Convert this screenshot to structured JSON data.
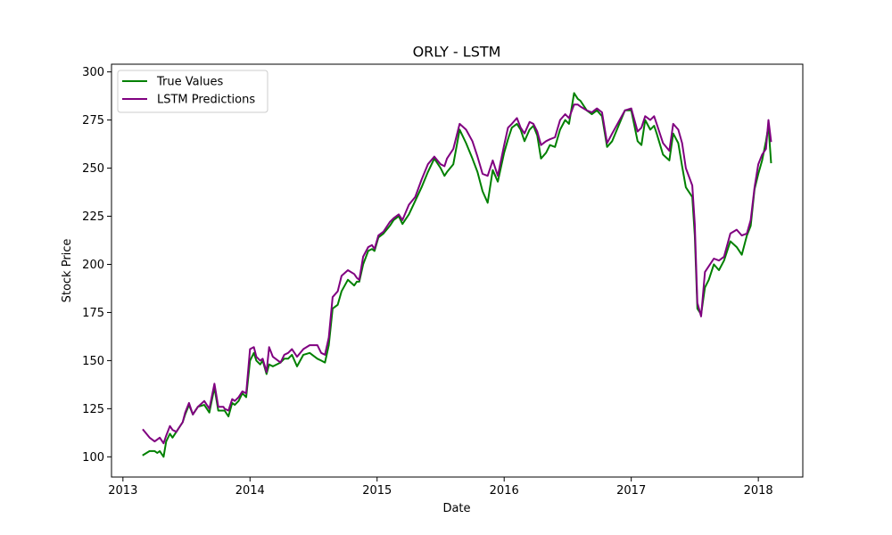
{
  "chart_data": {
    "type": "line",
    "title": "ORLY - LSTM",
    "xlabel": "Date",
    "ylabel": "Stock Price",
    "xlim": [
      2012.91,
      2018.35
    ],
    "ylim": [
      89.5,
      304
    ],
    "x_ticks": [
      2013,
      2014,
      2015,
      2016,
      2017,
      2018
    ],
    "x_tick_labels": [
      "2013",
      "2014",
      "2015",
      "2016",
      "2017",
      "2018"
    ],
    "y_ticks": [
      100,
      125,
      150,
      175,
      200,
      225,
      250,
      275,
      300
    ],
    "y_tick_labels": [
      "100",
      "125",
      "150",
      "175",
      "200",
      "225",
      "250",
      "275",
      "300"
    ],
    "grid": false,
    "legend": "top-left",
    "x_units": "year (decimal)",
    "series": [
      {
        "name": "True Values",
        "color": "#008000",
        "x": [
          2013.16,
          2013.21,
          2013.25,
          2013.27,
          2013.29,
          2013.32,
          2013.34,
          2013.37,
          2013.39,
          2013.42,
          2013.44,
          2013.47,
          2013.49,
          2013.52,
          2013.55,
          2013.59,
          2013.64,
          2013.68,
          2013.72,
          2013.75,
          2013.79,
          2013.8,
          2013.83,
          2013.86,
          2013.88,
          2013.91,
          2013.94,
          2013.97,
          2014.0,
          2014.03,
          2014.05,
          2014.08,
          2014.1,
          2014.13,
          2014.15,
          2014.18,
          2014.24,
          2014.27,
          2014.3,
          2014.33,
          2014.37,
          2014.42,
          2014.47,
          2014.53,
          2014.56,
          2014.59,
          2014.62,
          2014.65,
          2014.69,
          2014.72,
          2014.77,
          2014.82,
          2014.84,
          2014.86,
          2014.89,
          2014.93,
          2014.96,
          2014.98,
          2015.01,
          2015.05,
          2015.1,
          2015.13,
          2015.17,
          2015.2,
          2015.25,
          2015.3,
          2015.35,
          2015.4,
          2015.45,
          2015.5,
          2015.53,
          2015.55,
          2015.6,
          2015.65,
          2015.7,
          2015.75,
          2015.79,
          2015.83,
          2015.87,
          2015.91,
          2015.95,
          2016.0,
          2016.03,
          2016.06,
          2016.1,
          2016.13,
          2016.16,
          2016.2,
          2016.23,
          2016.26,
          2016.29,
          2016.33,
          2016.36,
          2016.4,
          2016.44,
          2016.48,
          2016.51,
          2016.55,
          2016.58,
          2016.6,
          2016.65,
          2016.69,
          2016.73,
          2016.77,
          2016.81,
          2016.85,
          2016.9,
          2016.95,
          2017.0,
          2017.05,
          2017.08,
          2017.11,
          2017.15,
          2017.18,
          2017.2,
          2017.25,
          2017.3,
          2017.33,
          2017.37,
          2017.4,
          2017.43,
          2017.48,
          2017.5,
          2017.52,
          2017.55,
          2017.58,
          2017.61,
          2017.65,
          2017.69,
          2017.73,
          2017.78,
          2017.83,
          2017.87,
          2017.91,
          2017.94,
          2017.97,
          2018.0,
          2018.03,
          2018.06,
          2018.08,
          2018.1
        ],
        "y": [
          101,
          103,
          103,
          102,
          103,
          100,
          108,
          112,
          110,
          113,
          115,
          118,
          122,
          127,
          122,
          126,
          127,
          123,
          136,
          124,
          124,
          124,
          121,
          128,
          127,
          129,
          133,
          131,
          150,
          154,
          150,
          148,
          150,
          143,
          148,
          147,
          149,
          151,
          151,
          153,
          147,
          153,
          154,
          151,
          150,
          149,
          158,
          177,
          179,
          186,
          192,
          189,
          191,
          191,
          200,
          207,
          208,
          207,
          214,
          216,
          220,
          223,
          225,
          221,
          226,
          233,
          240,
          248,
          255,
          250,
          246,
          248,
          252,
          270,
          263,
          255,
          248,
          238,
          232,
          249,
          243,
          258,
          265,
          271,
          273,
          270,
          264,
          270,
          272,
          267,
          255,
          258,
          262,
          261,
          270,
          275,
          273,
          289,
          286,
          285,
          280,
          278,
          280,
          277,
          261,
          264,
          272,
          280,
          280,
          264,
          262,
          275,
          270,
          272,
          268,
          257,
          254,
          268,
          263,
          251,
          240,
          235,
          215,
          177,
          174,
          188,
          192,
          200,
          197,
          202,
          212,
          209,
          205,
          215,
          220,
          239,
          247,
          254,
          264,
          272,
          253
        ]
      },
      {
        "name": "LSTM Predictions",
        "color": "#800080",
        "x": [
          2013.16,
          2013.21,
          2013.25,
          2013.27,
          2013.29,
          2013.32,
          2013.34,
          2013.37,
          2013.39,
          2013.42,
          2013.44,
          2013.47,
          2013.49,
          2013.52,
          2013.55,
          2013.59,
          2013.64,
          2013.68,
          2013.72,
          2013.75,
          2013.79,
          2013.8,
          2013.83,
          2013.86,
          2013.88,
          2013.91,
          2013.94,
          2013.97,
          2014.0,
          2014.03,
          2014.05,
          2014.08,
          2014.1,
          2014.13,
          2014.15,
          2014.18,
          2014.24,
          2014.27,
          2014.3,
          2014.33,
          2014.37,
          2014.42,
          2014.47,
          2014.53,
          2014.56,
          2014.59,
          2014.62,
          2014.65,
          2014.69,
          2014.72,
          2014.77,
          2014.82,
          2014.84,
          2014.86,
          2014.89,
          2014.93,
          2014.96,
          2014.98,
          2015.01,
          2015.05,
          2015.1,
          2015.13,
          2015.17,
          2015.2,
          2015.25,
          2015.3,
          2015.35,
          2015.4,
          2015.45,
          2015.5,
          2015.53,
          2015.55,
          2015.6,
          2015.65,
          2015.7,
          2015.75,
          2015.79,
          2015.83,
          2015.87,
          2015.91,
          2015.95,
          2016.0,
          2016.03,
          2016.06,
          2016.1,
          2016.13,
          2016.16,
          2016.2,
          2016.23,
          2016.26,
          2016.29,
          2016.33,
          2016.36,
          2016.4,
          2016.44,
          2016.48,
          2016.51,
          2016.55,
          2016.58,
          2016.6,
          2016.65,
          2016.69,
          2016.73,
          2016.77,
          2016.81,
          2016.85,
          2016.9,
          2016.95,
          2017.0,
          2017.05,
          2017.08,
          2017.11,
          2017.15,
          2017.18,
          2017.2,
          2017.25,
          2017.3,
          2017.33,
          2017.37,
          2017.4,
          2017.43,
          2017.48,
          2017.5,
          2017.52,
          2017.55,
          2017.58,
          2017.61,
          2017.65,
          2017.69,
          2017.73,
          2017.78,
          2017.83,
          2017.87,
          2017.91,
          2017.94,
          2017.97,
          2018.0,
          2018.03,
          2018.06,
          2018.08,
          2018.1
        ],
        "y": [
          114,
          110,
          108,
          109,
          110,
          107,
          111,
          116,
          114,
          113,
          115,
          118,
          123,
          128,
          122,
          126,
          129,
          125,
          138,
          126,
          126,
          125,
          124,
          130,
          129,
          131,
          134,
          133,
          156,
          157,
          152,
          150,
          151,
          144,
          157,
          152,
          149,
          153,
          154,
          156,
          152,
          156,
          158,
          158,
          154,
          153,
          162,
          183,
          186,
          194,
          197,
          195,
          193,
          192,
          204,
          209,
          210,
          208,
          215,
          217,
          222,
          224,
          226,
          223,
          231,
          235,
          244,
          252,
          256,
          252,
          251,
          255,
          260,
          273,
          270,
          264,
          256,
          247,
          246,
          254,
          246,
          262,
          271,
          273,
          276,
          271,
          268,
          274,
          273,
          269,
          262,
          264,
          265,
          266,
          275,
          278,
          276,
          283,
          283,
          282,
          280,
          279,
          281,
          279,
          263,
          268,
          274,
          280,
          281,
          269,
          271,
          277,
          275,
          277,
          273,
          263,
          259,
          273,
          270,
          263,
          250,
          241,
          221,
          180,
          173,
          196,
          199,
          203,
          202,
          204,
          216,
          218,
          215,
          216,
          223,
          240,
          252,
          257,
          260,
          275,
          264
        ]
      }
    ]
  }
}
